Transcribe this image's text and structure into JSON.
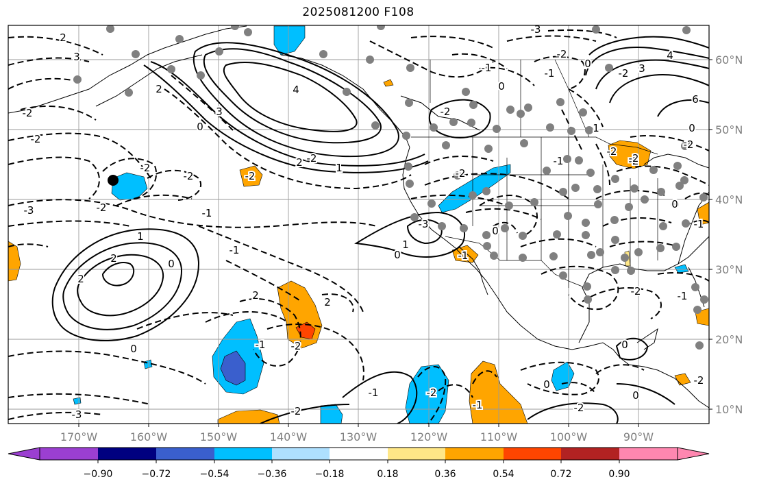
{
  "title": "2025081200 F108",
  "map": {
    "lon_ticks": [
      {
        "lon": -170,
        "label": "170°W"
      },
      {
        "lon": -160,
        "label": "160°W"
      },
      {
        "lon": -150,
        "label": "150°W"
      },
      {
        "lon": -140,
        "label": "140°W"
      },
      {
        "lon": -130,
        "label": "130°W"
      },
      {
        "lon": -120,
        "label": "120°W"
      },
      {
        "lon": -110,
        "label": "110°W"
      },
      {
        "lon": -100,
        "label": "100°W"
      },
      {
        "lon": -90,
        "label": "90°W"
      }
    ],
    "lat_ticks": [
      {
        "lat": 60,
        "label": "60°N"
      },
      {
        "lat": 50,
        "label": "50°N"
      },
      {
        "lat": 40,
        "label": "40°N"
      },
      {
        "lat": 30,
        "label": "30°N"
      },
      {
        "lat": 20,
        "label": "20°N"
      },
      {
        "lat": 10,
        "label": "10°N"
      }
    ],
    "contour_labels": [
      "2",
      "3",
      "-2",
      "2",
      "-2",
      "-3",
      "-2",
      "1",
      "2",
      "-2",
      "-1",
      "-2",
      "-3",
      "4",
      "3",
      "0",
      "-2",
      "2",
      "1",
      "-2",
      "-2",
      "-1",
      "-1",
      "-3",
      "-2",
      "0",
      "4",
      "3",
      "6",
      "0",
      "-2",
      "-2",
      "-2",
      "-2",
      "-2",
      "-1",
      "2",
      "-3",
      "1",
      "2",
      "2",
      "0",
      "-1",
      "0",
      "-2",
      "-1",
      "-2",
      "-2",
      "-1",
      "-2",
      "0",
      "0",
      "0",
      "-1",
      "0",
      "-1",
      "0",
      "0",
      "-1",
      "0",
      "1",
      "-1",
      "-2",
      "-2",
      "-2"
    ]
  },
  "colorbar": {
    "tick_labels": [
      "−0.90",
      "−0.72",
      "−0.54",
      "−0.36",
      "−0.18",
      "0.18",
      "0.36",
      "0.54",
      "0.72",
      "0.90"
    ],
    "colors": [
      "#9b3fd1",
      "#000080",
      "#3a5fcd",
      "#00bfff",
      "#aee0ff",
      "#ffffff",
      "#ffe787",
      "#ffa500",
      "#ff4500",
      "#b22222",
      "#ff87b0"
    ]
  }
}
